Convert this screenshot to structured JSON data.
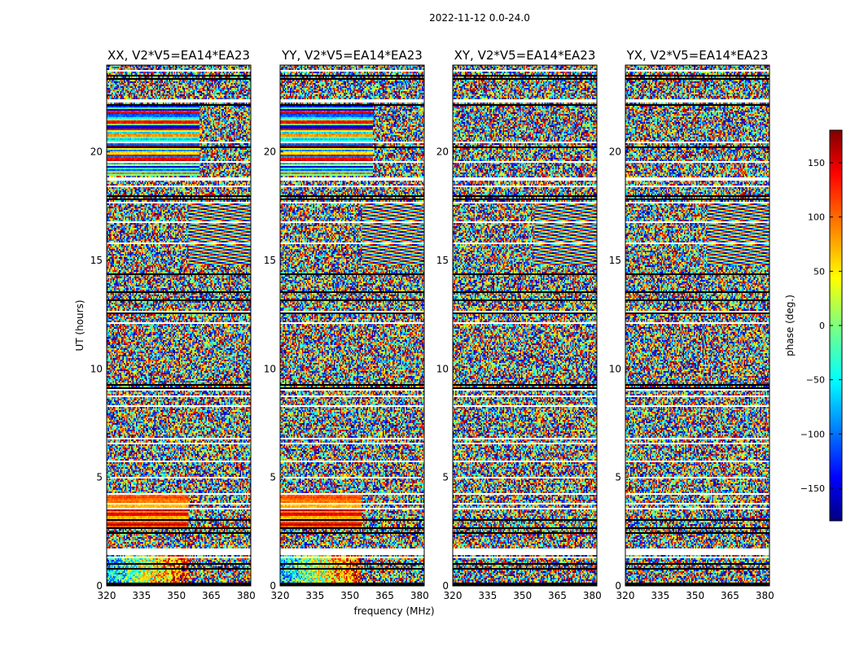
{
  "chart_data": {
    "type": "heatmap",
    "suptitle": "2022-11-12 0.0-24.0",
    "xlabel": "frequency (MHz)",
    "ylabel": "UT (hours)",
    "xlim": [
      320,
      382
    ],
    "ylim": [
      0,
      24
    ],
    "xticks": [
      "320",
      "335",
      "350",
      "365",
      "380"
    ],
    "yticks": [
      "0",
      "5",
      "10",
      "15",
      "20"
    ],
    "xtick_values": [
      320,
      335,
      350,
      365,
      380
    ],
    "ytick_values": [
      0,
      5,
      10,
      15,
      20
    ],
    "colorbar": {
      "label": "phase (deg.)",
      "range": [
        -180,
        180
      ],
      "tick_values": [
        150,
        100,
        50,
        0,
        -50,
        -100,
        -150
      ],
      "tick_labels": [
        "150",
        "100",
        "50",
        "0",
        "−50",
        "−100",
        "−150"
      ],
      "colormap": "jet",
      "colors": [
        "#00007f",
        "#0000ff",
        "#007fff",
        "#00ffff",
        "#7fff7f",
        "#ffff00",
        "#ff7f00",
        "#ff0000",
        "#7f0000"
      ]
    },
    "panels": [
      {
        "title": "XX, V2*V5=EA14*EA23",
        "pol": "XX"
      },
      {
        "title": "YY, V2*V5=EA14*EA23",
        "pol": "YY"
      },
      {
        "title": "XY, V2*V5=EA14*EA23",
        "pol": "XY"
      },
      {
        "title": "YX, V2*V5=EA14*EA23",
        "pol": "YX"
      }
    ],
    "blank_ut_bands_hours": [
      [
        1.45,
        1.75
      ],
      [
        22.3,
        22.45
      ],
      [
        18.7,
        18.85
      ]
    ],
    "coherent_phase_regions": [
      {
        "pols": [
          "XX",
          "YY"
        ],
        "ut": [
          18.9,
          22.1
        ],
        "freq": [
          320,
          360
        ],
        "description": "strong horizontal banding"
      },
      {
        "pols": [
          "XX",
          "YY"
        ],
        "ut": [
          2.6,
          4.2
        ],
        "freq": [
          320,
          355
        ],
        "description": "warm phase bands"
      },
      {
        "pols": [
          "XX",
          "YY"
        ],
        "ut": [
          0,
          1.4
        ],
        "freq": [
          320,
          355
        ],
        "description": "phase ramp toward high values"
      },
      {
        "pols": [
          "XX",
          "YY",
          "XY",
          "YX"
        ],
        "ut": [
          14.8,
          17.6
        ],
        "freq": [
          355,
          382
        ],
        "description": "fringe pattern"
      }
    ]
  }
}
